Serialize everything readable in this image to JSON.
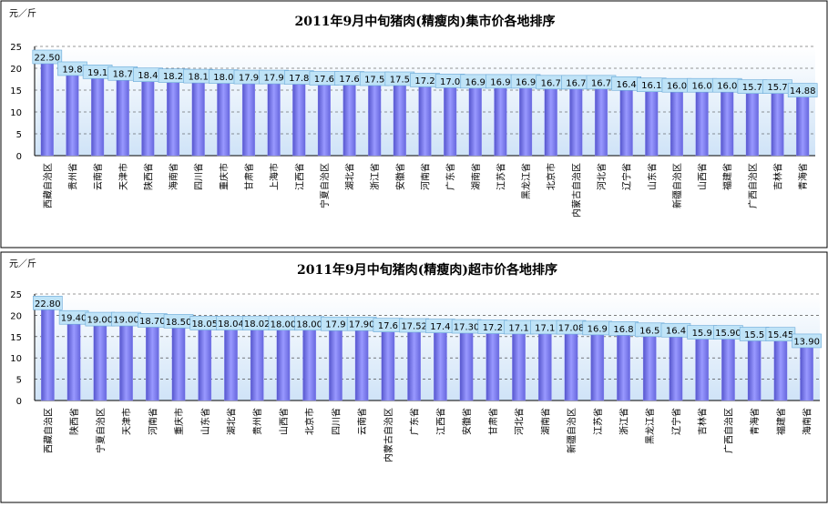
{
  "chart_data": [
    {
      "type": "bar",
      "title": "2011年9月中旬猪肉(精瘦肉)集市价各地排序",
      "y_label": "元／斤",
      "categories": [
        "西藏自治区",
        "贵州省",
        "云南省",
        "天津市",
        "陕西省",
        "海南省",
        "四川省",
        "重庆市",
        "甘肃省",
        "上海市",
        "江西省",
        "宁夏自治区",
        "湖北省",
        "浙江省",
        "安徽省",
        "河南省",
        "广东省",
        "湖南省",
        "江苏省",
        "黑龙江省",
        "北京市",
        "内蒙古自治区",
        "河北省",
        "辽宁省",
        "山东省",
        "新疆自治区",
        "山西省",
        "福建省",
        "广西自治区",
        "吉林省",
        "青海省"
      ],
      "values": [
        22.5,
        19.8,
        19.1,
        18.7,
        18.4,
        18.2,
        18.1,
        18.0,
        17.9,
        17.9,
        17.8,
        17.6,
        17.6,
        17.5,
        17.5,
        17.2,
        17.0,
        16.9,
        16.9,
        16.9,
        16.7,
        16.7,
        16.7,
        16.4,
        16.1,
        16.0,
        16.0,
        16.0,
        15.7,
        15.7,
        14.88
      ],
      "value_labels": [
        "22.50",
        "19.8",
        "19.1",
        "18.7",
        "18.4",
        "18.2",
        "18.1",
        "18.0",
        "17.9",
        "17.9",
        "17.8",
        "17.6",
        "17.6",
        "17.5",
        "17.5",
        "17.2",
        "17.0",
        "16.9",
        "16.9",
        "16.9",
        "16.7",
        "16.7",
        "16.7",
        "16.4",
        "16.1",
        "16.0",
        "16.0",
        "16.0",
        "15.7",
        "15.7",
        "14.88"
      ],
      "color": "#9999ff",
      "ylim": [
        0,
        25
      ],
      "yticks": [
        0,
        5,
        10,
        15,
        20,
        25
      ],
      "grid": true
    },
    {
      "type": "bar",
      "title": "2011年9月中旬猪肉(精瘦肉)超市价各地排序",
      "y_label": "元／斤",
      "categories": [
        "西藏自治区",
        "陕西省",
        "宁夏自治区",
        "天津市",
        "河南省",
        "重庆市",
        "山东省",
        "湖北省",
        "贵州省",
        "山西省",
        "北京市",
        "四川省",
        "云南省",
        "内蒙古自治区",
        "广东省",
        "江西省",
        "安徽省",
        "甘肃省",
        "河北省",
        "湖南省",
        "新疆自治区",
        "江苏省",
        "浙江省",
        "黑龙江省",
        "辽宁省",
        "吉林省",
        "广西自治区",
        "青海省",
        "福建省",
        "海南省"
      ],
      "values": [
        22.8,
        19.4,
        19.0,
        19.0,
        18.7,
        18.5,
        18.05,
        18.04,
        18.02,
        18.0,
        18.0,
        17.9,
        17.9,
        17.6,
        17.52,
        17.4,
        17.3,
        17.2,
        17.1,
        17.1,
        17.08,
        16.9,
        16.8,
        16.5,
        16.4,
        15.9,
        15.9,
        15.5,
        15.45,
        13.9
      ],
      "value_labels": [
        "22.80",
        "19.40",
        "19.00",
        "19.00",
        "18.70",
        "18.50",
        "18.05",
        "18.04",
        "18.02",
        "18.00",
        "18.00",
        "17.9",
        "17.90",
        "17.6",
        "17.52",
        "17.4",
        "17.30",
        "17.2",
        "17.1",
        "17.1",
        "17.08",
        "16.9",
        "16.8",
        "16.5",
        "16.4",
        "15.9",
        "15.90",
        "15.5",
        "15.45",
        "13.90"
      ],
      "color": "#9999ff",
      "ylim": [
        0,
        25
      ],
      "yticks": [
        0,
        5,
        10,
        15,
        20,
        25
      ],
      "grid": true
    }
  ]
}
